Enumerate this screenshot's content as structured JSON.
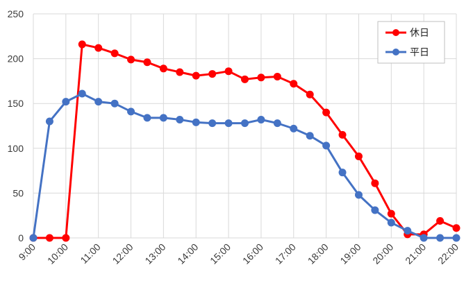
{
  "chart_data": {
    "type": "line",
    "title": "",
    "xlabel": "",
    "ylabel": "",
    "x": [
      "9:00",
      "9:30",
      "10:00",
      "10:30",
      "11:00",
      "11:30",
      "12:00",
      "12:30",
      "13:00",
      "13:30",
      "14:00",
      "14:30",
      "15:00",
      "15:30",
      "16:00",
      "16:30",
      "17:00",
      "17:30",
      "18:00",
      "18:30",
      "19:00",
      "19:30",
      "20:00",
      "20:30",
      "21:00",
      "21:30",
      "22:00"
    ],
    "x_tick_labels": [
      "9:00",
      "10:00",
      "11:00",
      "12:00",
      "13:00",
      "14:00",
      "15:00",
      "16:00",
      "17:00",
      "18:00",
      "19:00",
      "20:00",
      "21:00",
      "22:00"
    ],
    "ylim": [
      0,
      250
    ],
    "y_ticks": [
      0,
      50,
      100,
      150,
      200,
      250
    ],
    "y_tick_labels": [
      "0",
      "50",
      "100",
      "150",
      "200",
      "250"
    ],
    "grid": true,
    "legend_position": "top-right",
    "series": [
      {
        "name": "休日",
        "color": "#FF0000",
        "values": [
          0,
          0,
          0,
          216,
          212,
          206,
          199,
          196,
          189,
          185,
          181,
          183,
          186,
          177,
          179,
          180,
          172,
          160,
          140,
          115,
          91,
          61,
          27,
          4,
          4,
          19,
          11
        ]
      },
      {
        "name": "平日",
        "color": "#4472C4",
        "values": [
          0,
          130,
          152,
          161,
          152,
          150,
          141,
          134,
          134,
          132,
          129,
          128,
          128,
          128,
          132,
          128,
          122,
          114,
          103,
          73,
          48,
          31,
          17,
          8,
          0,
          0,
          0
        ]
      }
    ]
  }
}
